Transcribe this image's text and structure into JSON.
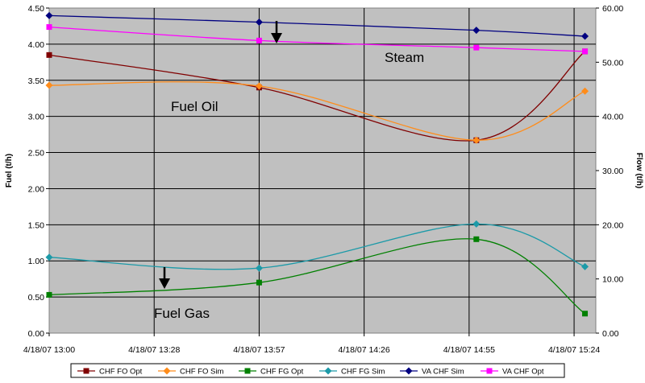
{
  "chart_data": {
    "type": "line",
    "x_tick_labels": [
      "4/18/07 13:00",
      "4/18/07 13:28",
      "4/18/07 13:57",
      "4/18/07 14:26",
      "4/18/07 14:55",
      "4/18/07 15:24"
    ],
    "y_left": {
      "label": "Fuel (t/h)",
      "ticks": [
        "0.00",
        "0.50",
        "1.00",
        "1.50",
        "2.00",
        "2.50",
        "3.00",
        "3.50",
        "4.00",
        "4.50"
      ],
      "ylim": [
        0,
        4.5
      ]
    },
    "y_right": {
      "label": "Flow (t/h)",
      "ticks": [
        "0.00",
        "10.00",
        "20.00",
        "30.00",
        "40.00",
        "50.00",
        "60.00"
      ],
      "ylim": [
        0,
        60
      ]
    },
    "x_range_minutes": [
      0,
      151
    ],
    "grid": true,
    "background": "#c0c0c0",
    "annotations": [
      {
        "id": "steam",
        "text": "Steam"
      },
      {
        "id": "fuel-oil",
        "text": "Fuel Oil"
      },
      {
        "id": "fuel-gas",
        "text": "Fuel Gas"
      }
    ],
    "series": [
      {
        "name": "CHF FO Opt",
        "axis": "left",
        "color": "#800000",
        "marker": "square",
        "x": [
          0,
          58,
          118,
          148
        ],
        "y": [
          3.85,
          3.4,
          2.67,
          3.9
        ]
      },
      {
        "name": "CHF FO Sim",
        "axis": "left",
        "color": "#ff8c1a",
        "marker": "diamond",
        "x": [
          0,
          58,
          118,
          148
        ],
        "y": [
          3.43,
          3.42,
          2.67,
          3.35
        ]
      },
      {
        "name": "CHF FG Opt",
        "axis": "left",
        "color": "#008000",
        "marker": "square",
        "x": [
          0,
          58,
          118,
          148
        ],
        "y": [
          0.53,
          0.7,
          1.3,
          0.27
        ]
      },
      {
        "name": "CHF FG Sim",
        "axis": "left",
        "color": "#1c9aa8",
        "marker": "diamond",
        "x": [
          0,
          58,
          118,
          148
        ],
        "y": [
          1.05,
          0.9,
          1.51,
          0.92
        ]
      },
      {
        "name": "VA CHF Sim",
        "axis": "right",
        "color": "#000080",
        "marker": "diamond",
        "x": [
          0,
          58,
          118,
          148
        ],
        "y": [
          58.6,
          57.4,
          55.9,
          54.8
        ]
      },
      {
        "name": "VA CHF Opt",
        "axis": "right",
        "color": "#ff00ff",
        "marker": "square",
        "x": [
          0,
          58,
          118,
          148
        ],
        "y": [
          56.5,
          54.0,
          52.7,
          52.0
        ]
      }
    ]
  }
}
